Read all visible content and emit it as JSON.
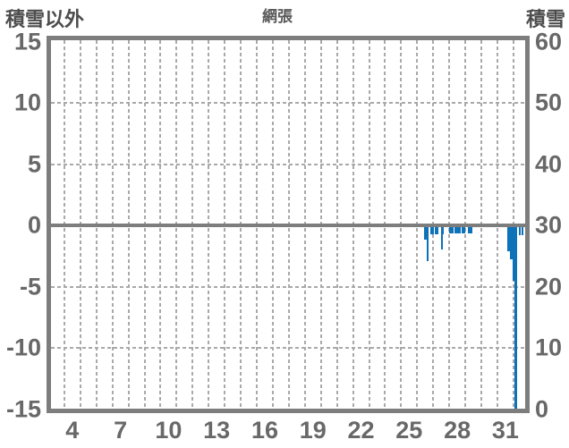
{
  "header": {
    "left_axis_title": "積雪以外",
    "chart_title": "網張",
    "right_axis_title": "積雪"
  },
  "chart_data": {
    "type": "bar",
    "title": "網張",
    "left_axis": {
      "title": "積雪以外",
      "min": -15,
      "max": 15,
      "ticks": [
        15,
        10,
        5,
        0,
        -5,
        -10,
        -15
      ]
    },
    "right_axis": {
      "title": "積雪",
      "min": 0,
      "max": 60,
      "ticks": [
        60,
        50,
        40,
        30,
        20,
        10,
        0
      ]
    },
    "x_axis": {
      "unit": "day-of-month",
      "ticks": [
        4,
        7,
        10,
        13,
        16,
        19,
        22,
        25,
        28,
        31
      ],
      "visible_day_range": [
        2.8,
        32.2
      ],
      "gridlines_at_half_days_from": 3.5,
      "gridlines_at_half_days_to": 31.5
    },
    "grid": {
      "style": "dashed",
      "h_lines_at_values": [
        10,
        5,
        -5,
        -10
      ],
      "v_line_per_day": true
    },
    "zero_line": true,
    "legend": "none",
    "bars": [
      {
        "day": 25.93,
        "width_days": 0.14,
        "value": -1.2
      },
      {
        "day": 26.07,
        "width_days": 0.14,
        "value": -2.9
      },
      {
        "day": 26.32,
        "width_days": 0.22,
        "value": -0.75
      },
      {
        "day": 26.6,
        "width_days": 0.22,
        "value": -0.7
      },
      {
        "day": 26.97,
        "width_days": 0.18,
        "value": -0.7
      },
      {
        "day": 26.97,
        "width_days": 0.13,
        "value": -2.0
      },
      {
        "day": 27.49,
        "width_days": 0.28,
        "value": -0.65
      },
      {
        "day": 27.83,
        "width_days": 0.39,
        "value": -0.65
      },
      {
        "day": 28.27,
        "width_days": 0.22,
        "value": -0.65
      },
      {
        "day": 28.66,
        "width_days": 0.28,
        "value": -0.65
      },
      {
        "day": 31.12,
        "width_days": 0.17,
        "value": -2.1
      },
      {
        "day": 31.29,
        "width_days": 0.17,
        "value": -2.8
      },
      {
        "day": 31.46,
        "width_days": 0.11,
        "value": -4.5
      },
      {
        "day": 31.56,
        "width_days": 0.17,
        "value": -15.2
      },
      {
        "day": 31.84,
        "width_days": 0.11,
        "value": -0.8
      },
      {
        "day": 32.01,
        "width_days": 0.11,
        "value": -0.8
      }
    ],
    "colors": {
      "bar": "#0e72b8",
      "frame": "#7d7d7d",
      "grid": "#a9a9a9",
      "tick_text": "#686868",
      "title_text": "#4d4d4d",
      "background": "#ffffff"
    }
  }
}
